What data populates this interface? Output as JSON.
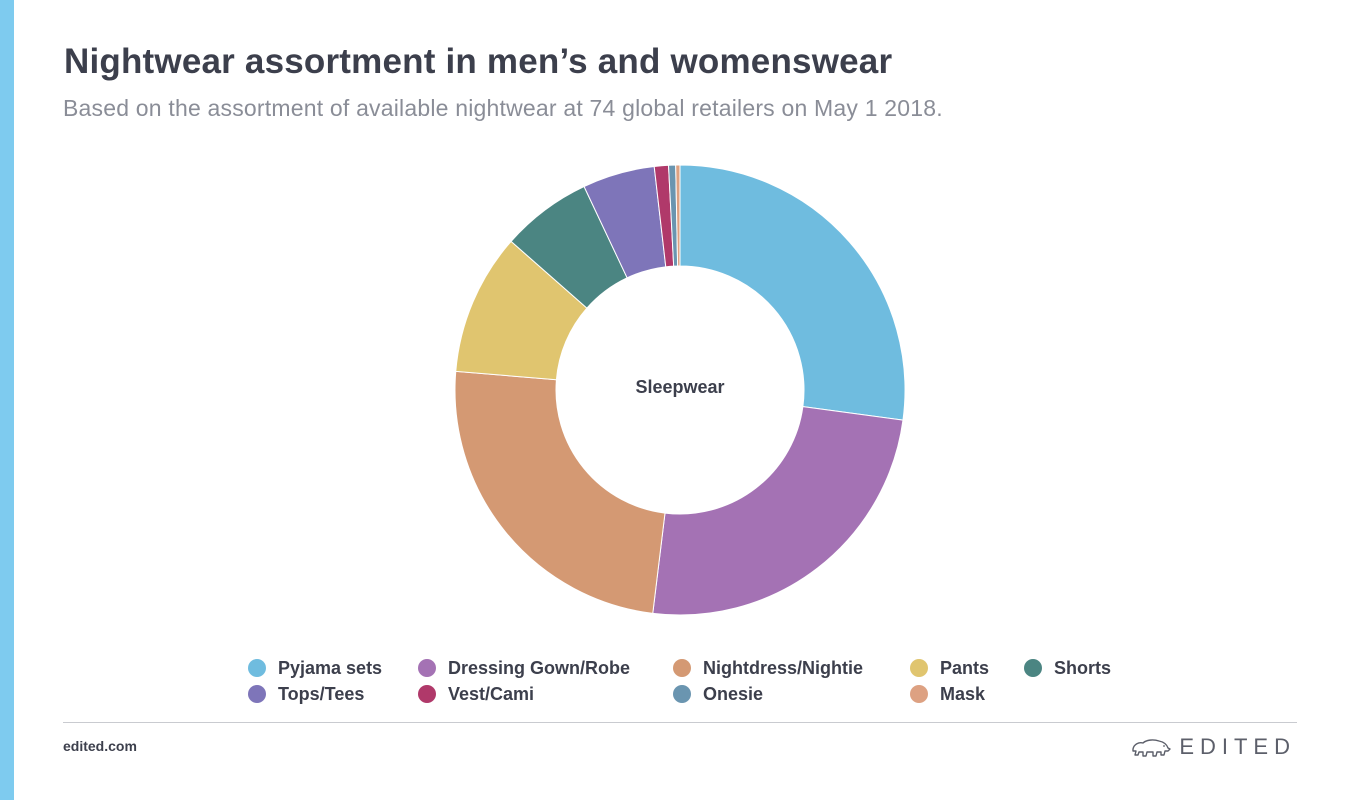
{
  "header": {
    "title": "Nightwear assortment in men’s and womenswear",
    "subtitle": "Based on the assortment of available nightwear at 74 global retailers on May 1 2018."
  },
  "colors": {
    "accent_bar": "#7ecbef",
    "hole": "#ffffff"
  },
  "chart_data": {
    "type": "pie",
    "donut": true,
    "center_label": "Sleepwear",
    "legend_position": "bottom",
    "series": [
      {
        "name": "Pyjama sets",
        "value": 26.7,
        "color": "#6fbcdf"
      },
      {
        "name": "Dressing Gown/Robe",
        "value": 24.4,
        "color": "#a472b4"
      },
      {
        "name": "Nightdress/Nightie",
        "value": 24.0,
        "color": "#d49973"
      },
      {
        "name": "Pants",
        "value": 10.0,
        "color": "#e0c56f"
      },
      {
        "name": "Shorts",
        "value": 6.4,
        "color": "#4b8582"
      },
      {
        "name": "Tops/Tees",
        "value": 5.1,
        "color": "#7e75b9"
      },
      {
        "name": "Vest/Cami",
        "value": 1.0,
        "color": "#b0396a"
      },
      {
        "name": "Onesie",
        "value": 0.5,
        "color": "#6a95b0"
      },
      {
        "name": "Mask",
        "value": 0.3,
        "color": "#dda182"
      }
    ]
  },
  "footer": {
    "url": "edited.com",
    "brand": "EDITED",
    "brand_icon": "polar-bear-icon"
  }
}
